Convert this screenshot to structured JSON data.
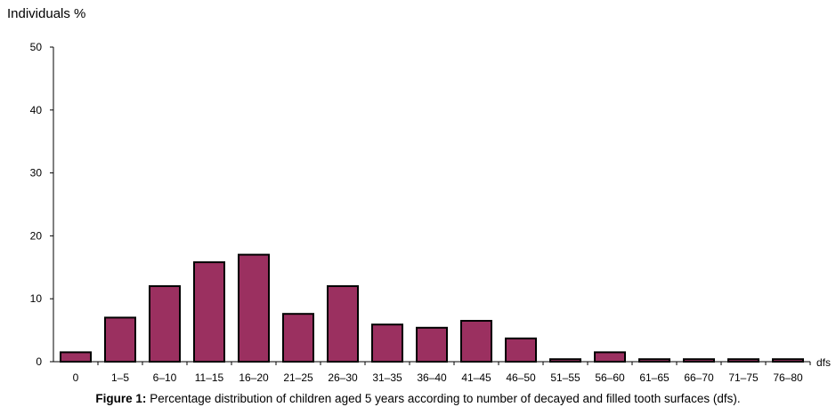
{
  "chart_data": {
    "type": "bar",
    "categories": [
      "0",
      "1–5",
      "6–10",
      "11–15",
      "16–20",
      "21–25",
      "26–30",
      "31–35",
      "36–40",
      "41–45",
      "46–50",
      "51–55",
      "56–60",
      "61–65",
      "66–70",
      "71–75",
      "76–80"
    ],
    "values": [
      1.5,
      7,
      12,
      15.8,
      17,
      7.6,
      12,
      5.9,
      5.4,
      6.5,
      3.7,
      0.4,
      1.5,
      0.4,
      0.4,
      0.4,
      0.4
    ],
    "ylabel": "Individuals %",
    "xlabel": "dfs",
    "ylim": [
      0,
      50
    ],
    "yticks": [
      "0",
      "10",
      "20",
      "30",
      "40",
      "50"
    ],
    "grid": false,
    "bar_color": "#9b3060",
    "bar_edge_color": "#000000"
  },
  "caption": {
    "label": "Figure 1:",
    "text": " Percentage distribution of children aged 5 years according to number of decayed and filled tooth surfaces (dfs)."
  }
}
